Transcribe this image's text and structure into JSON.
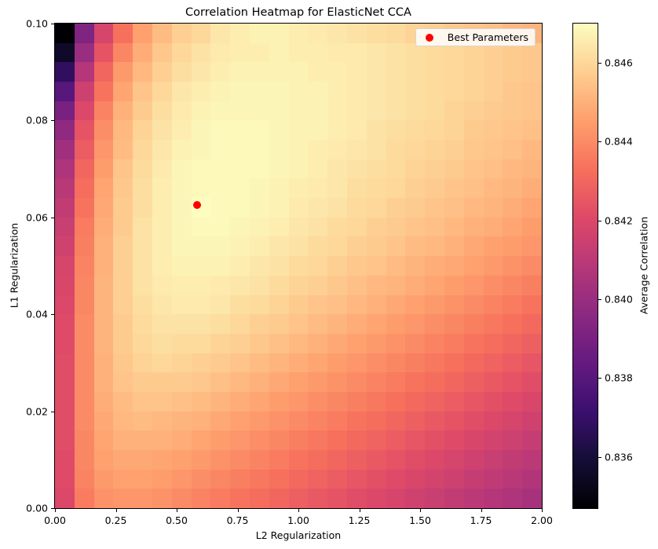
{
  "chart_data": {
    "type": "heatmap",
    "title": "Correlation Heatmap for ElasticNet CCA",
    "xlabel": "L2 Regularization",
    "ylabel": "L1 Regularization",
    "colorbar_label": "Average Correlation",
    "colormap": "magma",
    "xlim": [
      0,
      2.0
    ],
    "ylim": [
      0,
      0.1
    ],
    "clim": [
      0.8347,
      0.847
    ],
    "x_ticks": [
      "0.00",
      "0.25",
      "0.50",
      "0.75",
      "1.00",
      "1.25",
      "1.50",
      "1.75",
      "2.00"
    ],
    "y_ticks": [
      "0.00",
      "0.02",
      "0.04",
      "0.06",
      "0.08",
      "0.10"
    ],
    "colorbar_ticks": [
      "0.836",
      "0.838",
      "0.840",
      "0.842",
      "0.844",
      "0.846"
    ],
    "grid_size": [
      25,
      25
    ],
    "x_values_note": "L2 = linspace(0, 2, 25)",
    "y_values_note": "L1 = linspace(0, 0.1, 25); rows listed from L1=0 (bottom) to L1=0.1 (top)",
    "values": [
      [
        0.842,
        0.8436,
        0.8442,
        0.8443,
        0.8443,
        0.8442,
        0.844,
        0.8438,
        0.8436,
        0.8434,
        0.8432,
        0.843,
        0.8428,
        0.8426,
        0.8424,
        0.8422,
        0.842,
        0.8418,
        0.8416,
        0.8414,
        0.8412,
        0.841,
        0.8408,
        0.8406,
        0.8404
      ],
      [
        0.8421,
        0.8438,
        0.8444,
        0.8446,
        0.8446,
        0.8445,
        0.8443,
        0.8441,
        0.8439,
        0.8437,
        0.8435,
        0.8433,
        0.8431,
        0.8429,
        0.8427,
        0.8425,
        0.8423,
        0.8421,
        0.8419,
        0.8417,
        0.8415,
        0.8413,
        0.8411,
        0.8409,
        0.8407
      ],
      [
        0.8421,
        0.8439,
        0.8446,
        0.8448,
        0.8448,
        0.8447,
        0.8446,
        0.8444,
        0.8442,
        0.844,
        0.8438,
        0.8436,
        0.8434,
        0.8432,
        0.843,
        0.8428,
        0.8426,
        0.8424,
        0.8422,
        0.842,
        0.8418,
        0.8416,
        0.8414,
        0.8412,
        0.841
      ],
      [
        0.8422,
        0.8439,
        0.8447,
        0.845,
        0.845,
        0.845,
        0.8449,
        0.8447,
        0.8445,
        0.8443,
        0.8441,
        0.8439,
        0.8437,
        0.8435,
        0.8433,
        0.8431,
        0.8429,
        0.8427,
        0.8425,
        0.8423,
        0.8421,
        0.8419,
        0.8417,
        0.8415,
        0.8413
      ],
      [
        0.8422,
        0.844,
        0.8448,
        0.8452,
        0.8453,
        0.8452,
        0.8451,
        0.845,
        0.8448,
        0.8446,
        0.8444,
        0.8442,
        0.844,
        0.8438,
        0.8436,
        0.8434,
        0.8432,
        0.843,
        0.8428,
        0.8426,
        0.8424,
        0.8422,
        0.842,
        0.8418,
        0.8416
      ],
      [
        0.8422,
        0.844,
        0.8449,
        0.8453,
        0.8455,
        0.8455,
        0.8454,
        0.8453,
        0.8451,
        0.8449,
        0.8447,
        0.8445,
        0.8443,
        0.8441,
        0.8439,
        0.8437,
        0.8435,
        0.8433,
        0.8431,
        0.8429,
        0.8427,
        0.8425,
        0.8423,
        0.8421,
        0.8419
      ],
      [
        0.8422,
        0.844,
        0.845,
        0.8455,
        0.8457,
        0.8457,
        0.8457,
        0.8456,
        0.8454,
        0.8452,
        0.845,
        0.8448,
        0.8446,
        0.8444,
        0.8442,
        0.844,
        0.8438,
        0.8436,
        0.8434,
        0.8432,
        0.843,
        0.8428,
        0.8426,
        0.8424,
        0.8422
      ],
      [
        0.8422,
        0.844,
        0.845,
        0.8456,
        0.8459,
        0.846,
        0.8459,
        0.8458,
        0.8457,
        0.8455,
        0.8453,
        0.8451,
        0.8449,
        0.8447,
        0.8445,
        0.8443,
        0.8441,
        0.8439,
        0.8437,
        0.8435,
        0.8433,
        0.8431,
        0.8429,
        0.8427,
        0.8425
      ],
      [
        0.8421,
        0.844,
        0.8451,
        0.8457,
        0.846,
        0.8462,
        0.8461,
        0.8461,
        0.8459,
        0.8458,
        0.8456,
        0.8454,
        0.8452,
        0.845,
        0.8448,
        0.8446,
        0.8444,
        0.8442,
        0.844,
        0.8438,
        0.8436,
        0.8434,
        0.8432,
        0.843,
        0.8428
      ],
      [
        0.8421,
        0.844,
        0.8451,
        0.8457,
        0.8461,
        0.8463,
        0.8463,
        0.8463,
        0.8462,
        0.846,
        0.8458,
        0.8457,
        0.8455,
        0.8453,
        0.8451,
        0.8449,
        0.8447,
        0.8445,
        0.8443,
        0.8441,
        0.8439,
        0.8437,
        0.8435,
        0.8433,
        0.8431
      ],
      [
        0.842,
        0.8439,
        0.8451,
        0.8458,
        0.8462,
        0.8464,
        0.8465,
        0.8465,
        0.8464,
        0.8462,
        0.8461,
        0.8459,
        0.8457,
        0.8455,
        0.8454,
        0.8452,
        0.845,
        0.8448,
        0.8446,
        0.8444,
        0.8442,
        0.844,
        0.8438,
        0.8436,
        0.8434
      ],
      [
        0.8419,
        0.8439,
        0.8451,
        0.8458,
        0.8463,
        0.8465,
        0.8466,
        0.8466,
        0.8465,
        0.8464,
        0.8463,
        0.8461,
        0.8459,
        0.8458,
        0.8456,
        0.8454,
        0.8452,
        0.8451,
        0.8449,
        0.8447,
        0.8445,
        0.8443,
        0.8441,
        0.8439,
        0.8437
      ],
      [
        0.8418,
        0.8438,
        0.845,
        0.8458,
        0.8463,
        0.8466,
        0.8467,
        0.8467,
        0.8467,
        0.8466,
        0.8464,
        0.8463,
        0.8461,
        0.846,
        0.8458,
        0.8456,
        0.8455,
        0.8453,
        0.8451,
        0.8449,
        0.8448,
        0.8446,
        0.8444,
        0.8442,
        0.844
      ],
      [
        0.8416,
        0.8437,
        0.845,
        0.8458,
        0.8463,
        0.8466,
        0.8468,
        0.8468,
        0.8468,
        0.8467,
        0.8466,
        0.8464,
        0.8463,
        0.8461,
        0.846,
        0.8458,
        0.8457,
        0.8455,
        0.8453,
        0.8452,
        0.845,
        0.8448,
        0.8446,
        0.8445,
        0.8443
      ],
      [
        0.8414,
        0.8436,
        0.8449,
        0.8457,
        0.8463,
        0.8466,
        0.8468,
        0.8469,
        0.8469,
        0.8468,
        0.8467,
        0.8466,
        0.8464,
        0.8463,
        0.8461,
        0.846,
        0.8458,
        0.8457,
        0.8455,
        0.8454,
        0.8452,
        0.845,
        0.8449,
        0.8447,
        0.8445
      ],
      [
        0.8412,
        0.8434,
        0.8448,
        0.8457,
        0.8462,
        0.8466,
        0.8468,
        0.847,
        0.8469,
        0.8469,
        0.8468,
        0.8467,
        0.8465,
        0.8464,
        0.8463,
        0.8461,
        0.846,
        0.8458,
        0.8457,
        0.8455,
        0.8454,
        0.8452,
        0.8451,
        0.8449,
        0.8447
      ],
      [
        0.8409,
        0.8432,
        0.8447,
        0.8456,
        0.8462,
        0.8466,
        0.8468,
        0.8469,
        0.8469,
        0.8469,
        0.8468,
        0.8467,
        0.8466,
        0.8465,
        0.8464,
        0.8462,
        0.8461,
        0.846,
        0.8458,
        0.8457,
        0.8455,
        0.8454,
        0.8452,
        0.8451,
        0.8449
      ],
      [
        0.8406,
        0.843,
        0.8445,
        0.8455,
        0.8461,
        0.8465,
        0.8468,
        0.8469,
        0.8469,
        0.8469,
        0.8469,
        0.8468,
        0.8467,
        0.8466,
        0.8464,
        0.8463,
        0.8462,
        0.8461,
        0.8459,
        0.8458,
        0.8457,
        0.8455,
        0.8454,
        0.8452,
        0.8451
      ],
      [
        0.8402,
        0.8427,
        0.8443,
        0.8453,
        0.846,
        0.8464,
        0.8467,
        0.8468,
        0.8469,
        0.8469,
        0.8469,
        0.8468,
        0.8467,
        0.8466,
        0.8465,
        0.8464,
        0.8463,
        0.8461,
        0.846,
        0.8459,
        0.8458,
        0.8456,
        0.8455,
        0.8454,
        0.8452
      ],
      [
        0.8397,
        0.8424,
        0.8441,
        0.8452,
        0.8459,
        0.8463,
        0.8466,
        0.8468,
        0.8469,
        0.8469,
        0.8469,
        0.8468,
        0.8467,
        0.8467,
        0.8466,
        0.8465,
        0.8463,
        0.8462,
        0.8461,
        0.846,
        0.8459,
        0.8457,
        0.8456,
        0.8455,
        0.8454
      ],
      [
        0.839,
        0.842,
        0.8438,
        0.845,
        0.8457,
        0.8462,
        0.8465,
        0.8467,
        0.8468,
        0.8468,
        0.8468,
        0.8468,
        0.8467,
        0.8467,
        0.8466,
        0.8465,
        0.8464,
        0.8463,
        0.8462,
        0.8461,
        0.8459,
        0.8458,
        0.8457,
        0.8456,
        0.8455
      ],
      [
        0.838,
        0.8415,
        0.8434,
        0.8447,
        0.8455,
        0.846,
        0.8464,
        0.8466,
        0.8467,
        0.8468,
        0.8468,
        0.8468,
        0.8467,
        0.8467,
        0.8466,
        0.8465,
        0.8464,
        0.8463,
        0.8462,
        0.8461,
        0.846,
        0.8459,
        0.8458,
        0.8456,
        0.8455
      ],
      [
        0.8368,
        0.8408,
        0.843,
        0.8444,
        0.8452,
        0.8458,
        0.8462,
        0.8464,
        0.8466,
        0.8467,
        0.8467,
        0.8467,
        0.8467,
        0.8466,
        0.8466,
        0.8465,
        0.8464,
        0.8463,
        0.8462,
        0.8461,
        0.846,
        0.8459,
        0.8458,
        0.8457,
        0.8456
      ],
      [
        0.8356,
        0.84,
        0.8424,
        0.8439,
        0.8449,
        0.8456,
        0.846,
        0.8463,
        0.8465,
        0.8466,
        0.8466,
        0.8467,
        0.8466,
        0.8466,
        0.8465,
        0.8465,
        0.8464,
        0.8463,
        0.8462,
        0.8461,
        0.846,
        0.8459,
        0.8458,
        0.8457,
        0.8456
      ],
      [
        0.8347,
        0.8392,
        0.8418,
        0.8433,
        0.8446,
        0.8453,
        0.8458,
        0.846,
        0.8464,
        0.8466,
        0.8467,
        0.8467,
        0.8466,
        0.8465,
        0.8464,
        0.8463,
        0.8462,
        0.8461,
        0.8459,
        0.8458,
        0.8456,
        0.8455,
        0.8454,
        0.8452,
        0.8451
      ]
    ],
    "annotations": [
      {
        "label": "Best Parameters",
        "x": 0.583,
        "y": 0.0625,
        "color": "#ff0000",
        "marker": "circle"
      }
    ],
    "legend": {
      "position": "upper right",
      "entries": [
        "Best Parameters"
      ]
    },
    "grid": false
  },
  "labels": {
    "title": "Correlation Heatmap for ElasticNet CCA",
    "xlabel": "L2 Regularization",
    "ylabel": "L1 Regularization",
    "colorbar_label": "Average Correlation",
    "legend_entry": "Best Parameters"
  }
}
